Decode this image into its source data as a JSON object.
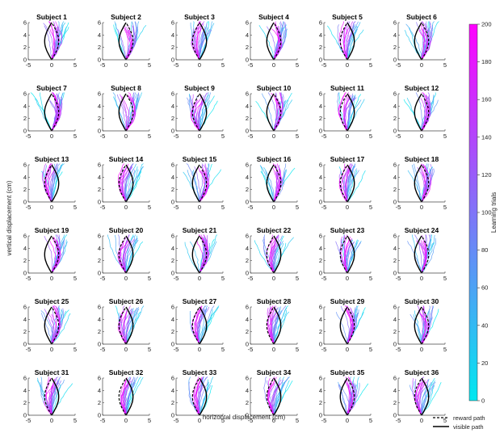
{
  "chart_data": {
    "type": "line",
    "layout": "6x6 small multiples",
    "panels": [
      "Subject 1",
      "Subject 2",
      "Subject 3",
      "Subject 4",
      "Subject 5",
      "Subject 6",
      "Subject 7",
      "Subject 8",
      "Subject 9",
      "Subject 10",
      "Subject 11",
      "Subject 12",
      "Subject 13",
      "Subject 14",
      "Subject 15",
      "Subject 16",
      "Subject 17",
      "Subject 18",
      "Subject 19",
      "Subject 20",
      "Subject 21",
      "Subject 22",
      "Subject 23",
      "Subject 24",
      "Subject 25",
      "Subject 26",
      "Subject 27",
      "Subject 28",
      "Subject 29",
      "Subject 30",
      "Subject 31",
      "Subject 32",
      "Subject 33",
      "Subject 34",
      "Subject 35",
      "Subject 36"
    ],
    "reward_bulge_side": [
      1,
      1,
      -1,
      1,
      -1,
      1,
      1,
      1,
      -1,
      1,
      -1,
      1,
      -1,
      -1,
      1,
      1,
      -1,
      1,
      1,
      -1,
      1,
      -1,
      -1,
      1,
      1,
      -1,
      -1,
      -1,
      1,
      1,
      -1,
      -1,
      -1,
      -1,
      1,
      -1
    ],
    "xlabel": "horizontal displacement (cm)",
    "ylabel": "vertical displacement (cm)",
    "xlim": [
      -5,
      5
    ],
    "ylim": [
      0,
      6
    ],
    "xticks": [
      "-5",
      "0",
      "5"
    ],
    "yticks": [
      "0",
      "2",
      "4",
      "6"
    ],
    "path_bulge_cm": 1.5,
    "colorbar": {
      "label": "Learning trials",
      "range": [
        0,
        200
      ],
      "ticks": [
        "0",
        "20",
        "40",
        "60",
        "80",
        "100",
        "120",
        "140",
        "160",
        "180",
        "200"
      ],
      "colors": [
        "#00e8f0",
        "#ff00ff"
      ]
    },
    "legend": {
      "placement": "bottom-right",
      "items": [
        {
          "label": "reward path",
          "style": "dashed",
          "color": "#000000"
        },
        {
          "label": "visible path",
          "style": "solid",
          "color": "#000000"
        }
      ]
    }
  }
}
